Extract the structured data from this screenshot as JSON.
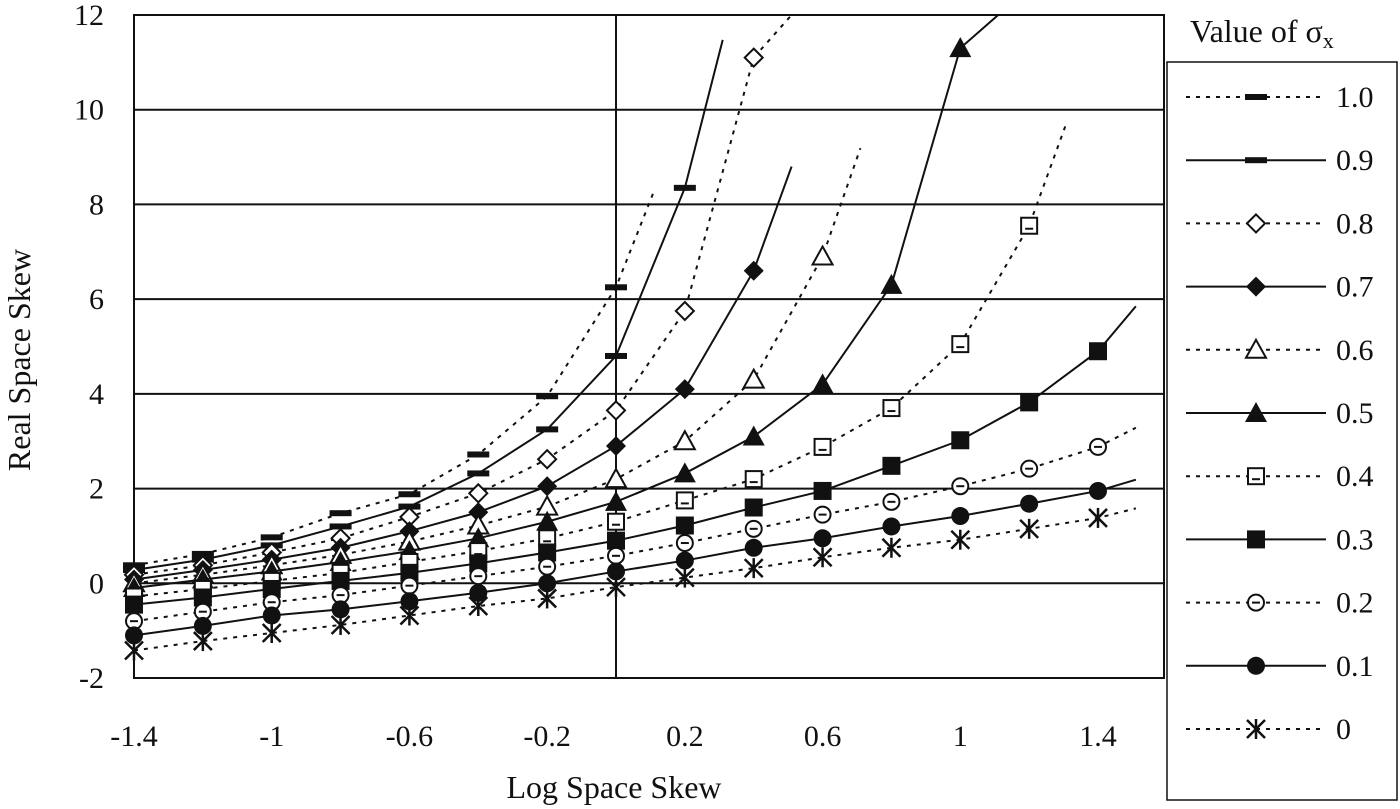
{
  "chart_data": {
    "type": "line",
    "title": "",
    "xlabel": "Log Space Skew",
    "ylabel": "Real Space Skew",
    "xlim": [
      -1.4,
      1.4
    ],
    "ylim": [
      -2,
      12
    ],
    "x_ticks": [
      "-1.4",
      "-1",
      "-0.6",
      "-0.2",
      "0.2",
      "0.6",
      "1",
      "1.4"
    ],
    "x_tick_values": [
      -1.4,
      -1,
      -0.6,
      -0.2,
      0.2,
      0.6,
      1,
      1.4
    ],
    "y_ticks": [
      "-2",
      "0",
      "2",
      "4",
      "6",
      "8",
      "10",
      "12"
    ],
    "y_tick_values": [
      -2,
      0,
      2,
      4,
      6,
      8,
      10,
      12
    ],
    "grid": "horizontal major lines plus vertical line at x=0",
    "legend": {
      "title_prefix": "Value of ",
      "title_symbol": "σ",
      "title_subscript": "x",
      "placement": "right"
    },
    "series": [
      {
        "name": "1.0",
        "line": "dotted",
        "marker": "dash",
        "x": [
          -1.4,
          -1.2,
          -1.0,
          -0.8,
          -0.6,
          -0.4,
          -0.2,
          0.0
        ],
        "y": [
          0.38,
          0.62,
          0.97,
          1.48,
          1.88,
          2.72,
          3.95,
          6.25
        ]
      },
      {
        "name": "0.9",
        "line": "solid",
        "marker": "dash",
        "x": [
          -1.4,
          -1.2,
          -1.0,
          -0.8,
          -0.6,
          -0.4,
          -0.2,
          0.0,
          0.2
        ],
        "y": [
          0.28,
          0.5,
          0.8,
          1.2,
          1.62,
          2.32,
          3.25,
          4.8,
          8.35
        ]
      },
      {
        "name": "0.8",
        "line": "dotted",
        "marker": "diamond-open",
        "x": [
          -1.4,
          -1.2,
          -1.0,
          -0.8,
          -0.6,
          -0.4,
          -0.2,
          0.0,
          0.2,
          0.4
        ],
        "y": [
          0.18,
          0.38,
          0.65,
          0.95,
          1.4,
          1.9,
          2.62,
          3.65,
          5.75,
          11.1
        ]
      },
      {
        "name": "0.7",
        "line": "solid",
        "marker": "diamond-filled",
        "x": [
          -1.4,
          -1.2,
          -1.0,
          -0.8,
          -0.6,
          -0.4,
          -0.2,
          0.0,
          0.2,
          0.4
        ],
        "y": [
          0.08,
          0.28,
          0.5,
          0.75,
          1.1,
          1.5,
          2.05,
          2.9,
          4.1,
          6.6
        ]
      },
      {
        "name": "0.6",
        "line": "dotted",
        "marker": "triangle-open",
        "x": [
          -1.4,
          -1.2,
          -1.0,
          -0.8,
          -0.6,
          -0.4,
          -0.2,
          0.0,
          0.2,
          0.4,
          0.6
        ],
        "y": [
          0.0,
          0.18,
          0.38,
          0.6,
          0.88,
          1.22,
          1.62,
          2.2,
          3.0,
          4.3,
          6.9
        ]
      },
      {
        "name": "0.5",
        "line": "solid",
        "marker": "triangle-filled",
        "x": [
          -1.4,
          -1.2,
          -1.0,
          -0.8,
          -0.6,
          -0.4,
          -0.2,
          0.0,
          0.2,
          0.4,
          0.6,
          0.8,
          1.0
        ],
        "y": [
          -0.1,
          0.08,
          0.25,
          0.45,
          0.68,
          0.95,
          1.3,
          1.72,
          2.32,
          3.1,
          4.2,
          6.3,
          11.3
        ]
      },
      {
        "name": "0.4",
        "line": "dotted",
        "marker": "square-open",
        "x": [
          -1.4,
          -1.2,
          -1.0,
          -0.8,
          -0.6,
          -0.4,
          -0.2,
          0.0,
          0.2,
          0.4,
          0.6,
          0.8,
          1.0,
          1.2
        ],
        "y": [
          -0.28,
          -0.12,
          0.05,
          0.22,
          0.45,
          0.68,
          0.95,
          1.3,
          1.75,
          2.2,
          2.88,
          3.7,
          5.05,
          7.55
        ]
      },
      {
        "name": "0.3",
        "line": "solid",
        "marker": "square-filled",
        "x": [
          -1.4,
          -1.2,
          -1.0,
          -0.8,
          -0.6,
          -0.4,
          -0.2,
          0.0,
          0.2,
          0.4,
          0.6,
          0.8,
          1.0,
          1.2,
          1.4
        ],
        "y": [
          -0.45,
          -0.3,
          -0.12,
          0.05,
          0.22,
          0.42,
          0.65,
          0.9,
          1.22,
          1.6,
          1.95,
          2.48,
          3.02,
          3.82,
          4.9
        ]
      },
      {
        "name": "0.2",
        "line": "dotted",
        "marker": "circle-open-dash",
        "x": [
          -1.4,
          -1.2,
          -1.0,
          -0.8,
          -0.6,
          -0.4,
          -0.2,
          0.0,
          0.2,
          0.4,
          0.6,
          0.8,
          1.0,
          1.2,
          1.4
        ],
        "y": [
          -0.8,
          -0.6,
          -0.4,
          -0.25,
          -0.05,
          0.15,
          0.35,
          0.58,
          0.85,
          1.15,
          1.45,
          1.72,
          2.05,
          2.42,
          2.88
        ]
      },
      {
        "name": "0.1",
        "line": "solid",
        "marker": "circle-filled",
        "x": [
          -1.4,
          -1.2,
          -1.0,
          -0.8,
          -0.6,
          -0.4,
          -0.2,
          0.0,
          0.2,
          0.4,
          0.6,
          0.8,
          1.0,
          1.2,
          1.4
        ],
        "y": [
          -1.1,
          -0.9,
          -0.68,
          -0.55,
          -0.38,
          -0.2,
          0.0,
          0.25,
          0.48,
          0.75,
          0.95,
          1.2,
          1.42,
          1.68,
          1.95
        ]
      },
      {
        "name": "0",
        "line": "dotted",
        "marker": "asterisk",
        "x": [
          -1.4,
          -1.2,
          -1.0,
          -0.8,
          -0.6,
          -0.4,
          -0.2,
          0.0,
          0.2,
          0.4,
          0.6,
          0.8,
          1.0,
          1.2,
          1.4
        ],
        "y": [
          -1.42,
          -1.22,
          -1.05,
          -0.88,
          -0.68,
          -0.48,
          -0.32,
          -0.08,
          0.12,
          0.32,
          0.55,
          0.75,
          0.92,
          1.15,
          1.38
        ]
      }
    ]
  }
}
